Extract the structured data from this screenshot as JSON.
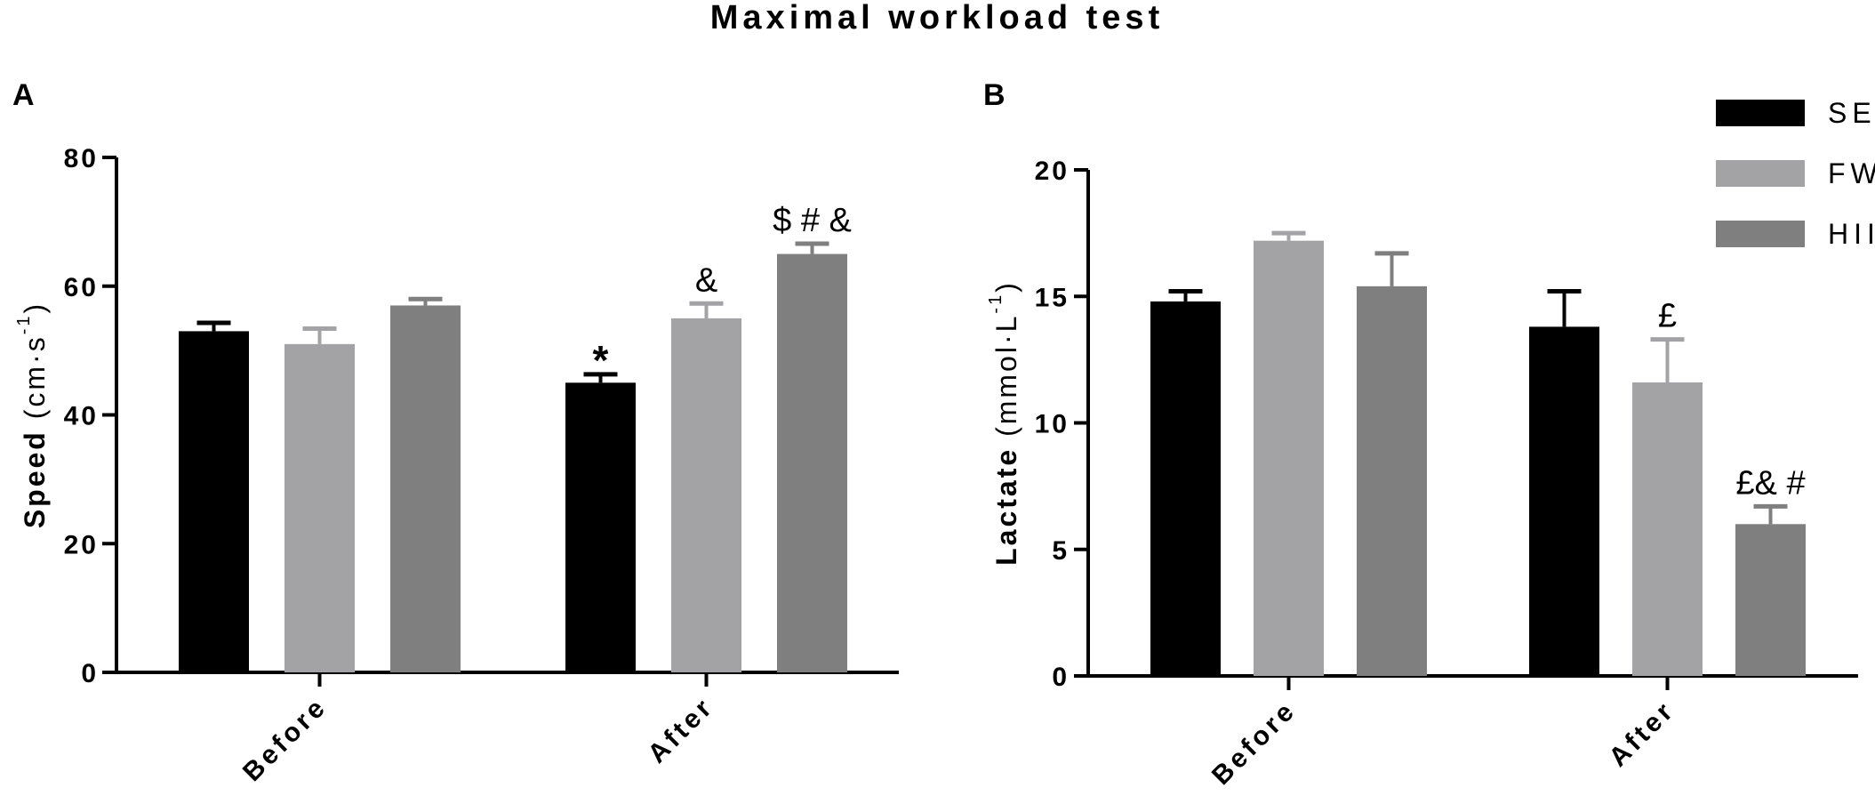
{
  "figure_title": "Maximal workload test",
  "colors": {
    "SED": "#000000",
    "FW": "#a3a3a6",
    "HIIT": "#7f7f7f",
    "axis": "#000000"
  },
  "legend": {
    "placement": "top-right",
    "entries": [
      {
        "name": "SED",
        "color": "#000000"
      },
      {
        "name": "FW",
        "color": "#a3a3a6"
      },
      {
        "name": "HIIT",
        "color": "#7f7f7f"
      }
    ]
  },
  "chart_data": [
    {
      "panel": "A",
      "type": "bar",
      "ylabel": "Speed",
      "yunit": {
        "base": "(cm·s",
        "sup": "-1",
        "close": ")"
      },
      "categories": [
        "Before",
        "After"
      ],
      "ylim": [
        0,
        80
      ],
      "yticks": [
        0,
        20,
        40,
        60,
        80
      ],
      "grid": false,
      "series": [
        {
          "name": "SED",
          "values": [
            53,
            45
          ],
          "errors": [
            1.3,
            1.3
          ]
        },
        {
          "name": "FW",
          "values": [
            51,
            55
          ],
          "errors": [
            2.4,
            2.3
          ]
        },
        {
          "name": "HIIT",
          "values": [
            57,
            65
          ],
          "errors": [
            1.0,
            1.6
          ]
        }
      ],
      "annotations": [
        {
          "category": "After",
          "series": "SED",
          "text": "*"
        },
        {
          "category": "After",
          "series": "FW",
          "text": "&"
        },
        {
          "category": "After",
          "series": "HIIT",
          "text": "$ # &"
        }
      ]
    },
    {
      "panel": "B",
      "type": "bar",
      "ylabel": "Lactate",
      "yunit": {
        "base": "(mmol·L",
        "sup": "-1",
        "close": ")"
      },
      "categories": [
        "Before",
        "After"
      ],
      "ylim": [
        0,
        20
      ],
      "yticks": [
        0,
        5,
        10,
        15,
        20
      ],
      "grid": false,
      "series": [
        {
          "name": "SED",
          "values": [
            14.8,
            13.8
          ],
          "errors": [
            0.4,
            1.4
          ]
        },
        {
          "name": "FW",
          "values": [
            17.2,
            11.6
          ],
          "errors": [
            0.3,
            1.7
          ]
        },
        {
          "name": "HIIT",
          "values": [
            15.4,
            6.0
          ],
          "errors": [
            1.3,
            0.7
          ]
        }
      ],
      "annotations": [
        {
          "category": "After",
          "series": "FW",
          "text": "£"
        },
        {
          "category": "After",
          "series": "HIIT",
          "text": "£& #"
        }
      ]
    }
  ]
}
